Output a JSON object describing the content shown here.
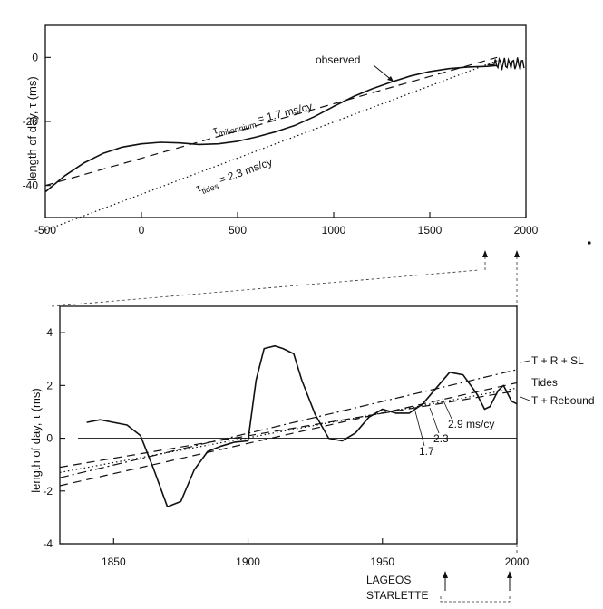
{
  "chart_data": [
    {
      "type": "line",
      "ylabel": "length of day, τ (ms)",
      "xlim": [
        -500,
        2000
      ],
      "ylim": [
        -50,
        10
      ],
      "xticks": [
        -500,
        0,
        500,
        1000,
        1500,
        2000
      ],
      "yticks": [
        0,
        -20,
        -40
      ],
      "annotations": {
        "observed": "observed",
        "millennium_prefix": "τ",
        "millennium_sub": "millennium",
        "millennium_value": "= 1.7 ms/cy",
        "tides_prefix": "τ",
        "tides_sub": "tides",
        "tides_value": "= 2.3 ms/cy"
      },
      "series": [
        {
          "style": "solid",
          "x": [
            -500,
            -400,
            -300,
            -200,
            -100,
            0,
            100,
            200,
            300,
            400,
            500,
            600,
            700,
            800,
            900,
            1000,
            1100,
            1200,
            1300,
            1400,
            1500,
            1600,
            1700,
            1800,
            1850
          ],
          "y": [
            -42,
            -37,
            -33,
            -30,
            -28,
            -27,
            -26.5,
            -26.7,
            -27.2,
            -27,
            -26.2,
            -24.8,
            -23.2,
            -21.2,
            -18.5,
            -15.3,
            -12.3,
            -9.8,
            -7.7,
            -5.8,
            -4.4,
            -3.5,
            -3,
            -2.8,
            -2.5
          ]
        },
        {
          "style": "dashed",
          "x": [
            -500,
            1850
          ],
          "y": [
            -40,
            0
          ]
        },
        {
          "style": "dotted",
          "x": [
            -500,
            1850
          ],
          "y": [
            -54,
            -1
          ]
        }
      ]
    },
    {
      "type": "line",
      "ylabel": "length of day, τ (ms)",
      "xlim": [
        1830,
        2000
      ],
      "ylim": [
        -4,
        5
      ],
      "xticks": [
        1850,
        1900,
        1950,
        2000
      ],
      "yticks": [
        4,
        2,
        0,
        -2,
        -4
      ],
      "legend": {
        "trsl": "T + R + SL",
        "tides": "Tides",
        "rebound": "T + Rebound"
      },
      "rate_labels": [
        "2.9 ms/cy",
        "2.3",
        "1.7"
      ],
      "footer_labels": [
        "LAGEOS",
        "STARLETTE"
      ],
      "series": [
        {
          "style": "solid",
          "x": [
            1840,
            1845,
            1850,
            1855,
            1860,
            1865,
            1870,
            1875,
            1880,
            1885,
            1890,
            1895,
            1900,
            1903,
            1906,
            1910,
            1913,
            1917,
            1920,
            1925,
            1930,
            1935,
            1940,
            1945,
            1950,
            1955,
            1960,
            1965,
            1970,
            1975,
            1980,
            1985,
            1988,
            1990,
            1993,
            1995,
            1998,
            2000
          ],
          "y": [
            0.6,
            0.7,
            0.6,
            0.5,
            0.1,
            -1.2,
            -2.6,
            -2.4,
            -1.2,
            -0.5,
            -0.3,
            -0.15,
            -0.1,
            2.2,
            3.4,
            3.5,
            3.4,
            3.2,
            2.2,
            0.9,
            0.0,
            -0.1,
            0.2,
            0.8,
            1.1,
            0.95,
            0.95,
            1.3,
            1.9,
            2.5,
            2.4,
            1.7,
            1.1,
            1.2,
            1.8,
            2.0,
            1.4,
            1.3
          ]
        },
        {
          "style": "dashdot",
          "x": [
            1830,
            2000
          ],
          "y": [
            -1.5,
            2.6
          ]
        },
        {
          "style": "dotted",
          "x": [
            1830,
            2000
          ],
          "y": [
            -1.3,
            1.9
          ]
        },
        {
          "style": "dashed",
          "x": [
            1830,
            2000
          ],
          "y": [
            -1.1,
            1.8
          ]
        },
        {
          "style": "dashed",
          "x": [
            1830,
            2000
          ],
          "y": [
            -1.8,
            2.1
          ]
        }
      ]
    }
  ]
}
